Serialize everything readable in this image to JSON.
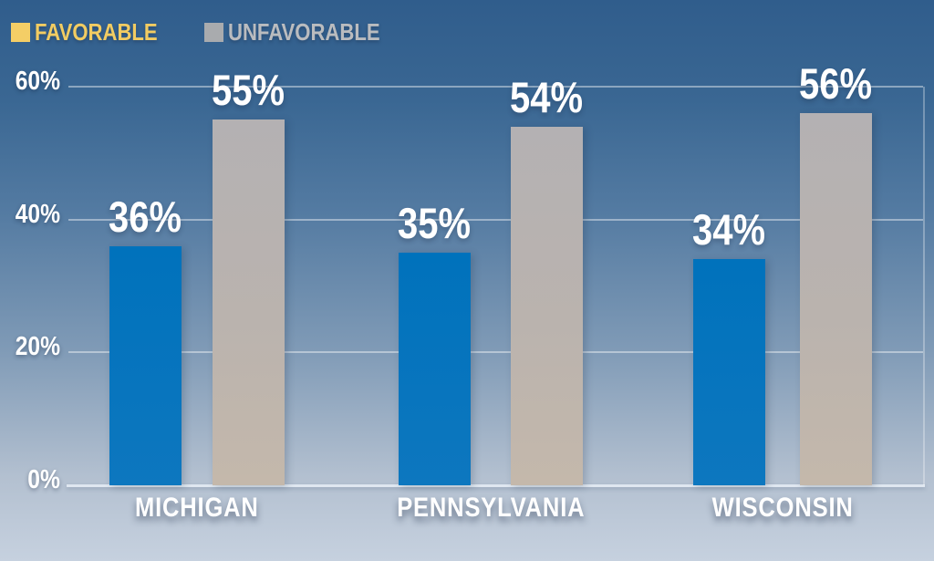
{
  "chart_data": {
    "type": "bar",
    "title": "",
    "categories": [
      "MICHIGAN",
      "PENNSYLVANIA",
      "WISCONSIN"
    ],
    "series": [
      {
        "name": "FAVORABLE",
        "color": "#0072bc",
        "values": [
          36,
          35,
          34
        ],
        "data_labels": [
          "36%",
          "35%",
          "34%"
        ]
      },
      {
        "name": "UNFAVORABLE",
        "color": "#b6b1b0",
        "values": [
          55,
          54,
          56
        ],
        "data_labels": [
          "55%",
          "54%",
          "56%"
        ]
      }
    ],
    "xlabel": "",
    "ylabel": "",
    "y_axis": {
      "tick_labels": [
        "0%",
        "20%",
        "40%",
        "60%"
      ],
      "tick_values": [
        0,
        20,
        40,
        60
      ],
      "range": [
        0,
        62
      ]
    },
    "grid": true,
    "legend_position": "top-left"
  },
  "legend": {
    "items": [
      {
        "label": "FAVORABLE",
        "swatch_color": "#f4ce66",
        "text_color": "#f2cc62"
      },
      {
        "label": "UNFAVORABLE",
        "swatch_color": "#a9abae",
        "text_color": "#babcbf"
      }
    ]
  },
  "colors": {
    "favorable_bar": "#0072bc",
    "unfavorable_bar_top": "#b4b1b3",
    "unfavorable_bar_bottom": "#c4b8ab",
    "favorable_legend": "#f4ce66",
    "axis_text": "#ffffff",
    "gridline": "#ffffff",
    "background_top": "#305d8c",
    "background_bottom": "#c6d1df"
  }
}
